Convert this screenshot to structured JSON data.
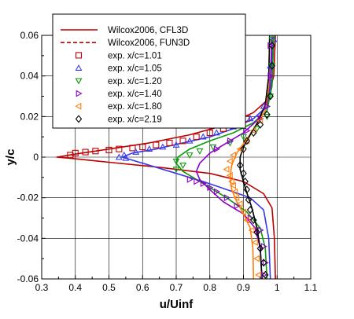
{
  "chart_data": {
    "type": "line",
    "title": "",
    "xlabel": "u/Uinf",
    "ylabel": "y/c",
    "xlim": [
      0.3,
      1.1
    ],
    "ylim": [
      -0.06,
      0.06
    ],
    "xticks": [
      0.3,
      0.4,
      0.5,
      0.6,
      0.7,
      0.8,
      0.9,
      1.0,
      1.1
    ],
    "xtick_labels": [
      "0.3",
      "0.4",
      "0.5",
      "0.6",
      "0.7",
      "0.8",
      "0.9",
      "1",
      "1.1"
    ],
    "yticks": [
      -0.06,
      -0.04,
      -0.02,
      0,
      0.02,
      0.04,
      0.06
    ],
    "ytick_labels": [
      "-0.06",
      "-0.04",
      "-0.02",
      "0",
      "0.02",
      "0.04",
      "0.06"
    ],
    "grid": true,
    "legend_position": "top-left",
    "legend": [
      {
        "label": "Wilcox2006, CFL3D",
        "style": "solid-line",
        "color": "#c00000"
      },
      {
        "label": "Wilcox2006, FUN3D",
        "style": "dashed-line",
        "color": "#c00000"
      },
      {
        "label": "exp. x/c=1.01",
        "style": "square",
        "color": "#c00000"
      },
      {
        "label": "exp. x/c=1.05",
        "style": "triangle-up",
        "color": "#3a3ae8"
      },
      {
        "label": "exp. x/c=1.20",
        "style": "triangle-down",
        "color": "#0a9a0a"
      },
      {
        "label": "exp. x/c=1.40",
        "style": "triangle-right",
        "color": "#8a00c8"
      },
      {
        "label": "exp. x/c=1.80",
        "style": "triangle-left",
        "color": "#ff7f0e"
      },
      {
        "label": "exp. x/c=2.19",
        "style": "diamond",
        "color": "#000000"
      }
    ],
    "series": [
      {
        "station": "x/c=1.01",
        "color": "#c00000",
        "cfd": [
          [
            0.995,
            -0.06
          ],
          [
            0.992,
            -0.04
          ],
          [
            0.985,
            -0.025
          ],
          [
            0.96,
            -0.018
          ],
          [
            0.9,
            -0.012
          ],
          [
            0.8,
            -0.008
          ],
          [
            0.65,
            -0.005
          ],
          [
            0.5,
            -0.0025
          ],
          [
            0.4,
            -0.0008
          ],
          [
            0.345,
            0.0
          ],
          [
            0.4,
            0.0015
          ],
          [
            0.5,
            0.004
          ],
          [
            0.62,
            0.007
          ],
          [
            0.74,
            0.011
          ],
          [
            0.85,
            0.016
          ],
          [
            0.93,
            0.022
          ],
          [
            0.97,
            0.028
          ],
          [
            0.99,
            0.04
          ],
          [
            0.995,
            0.06
          ]
        ],
        "exp": [
          [
            0.385,
            0.001
          ],
          [
            0.4,
            0.002
          ],
          [
            0.43,
            0.0025
          ],
          [
            0.46,
            0.003
          ],
          [
            0.5,
            0.0035
          ],
          [
            0.53,
            0.004
          ],
          [
            0.57,
            0.0045
          ],
          [
            0.6,
            0.005
          ],
          [
            0.64,
            0.006
          ],
          [
            0.68,
            0.007
          ],
          [
            0.72,
            0.008
          ],
          [
            0.76,
            0.01
          ],
          [
            0.8,
            0.012
          ],
          [
            0.84,
            0.014
          ],
          [
            0.88,
            0.017
          ],
          [
            0.91,
            0.019
          ]
        ]
      },
      {
        "station": "x/c=1.05",
        "color": "#3a3ae8",
        "cfd": [
          [
            0.98,
            -0.06
          ],
          [
            0.975,
            -0.04
          ],
          [
            0.96,
            -0.026
          ],
          [
            0.92,
            -0.02
          ],
          [
            0.85,
            -0.016
          ],
          [
            0.78,
            -0.012
          ],
          [
            0.7,
            -0.008
          ],
          [
            0.62,
            -0.004
          ],
          [
            0.56,
            -0.001
          ],
          [
            0.54,
            0.0
          ],
          [
            0.57,
            0.002
          ],
          [
            0.64,
            0.004
          ],
          [
            0.72,
            0.007
          ],
          [
            0.8,
            0.01
          ],
          [
            0.87,
            0.014
          ],
          [
            0.93,
            0.019
          ],
          [
            0.97,
            0.025
          ],
          [
            0.985,
            0.04
          ],
          [
            0.985,
            0.06
          ]
        ],
        "exp": [
          [
            0.53,
            0.0
          ],
          [
            0.545,
            0.001
          ],
          [
            0.55,
            -0.0005
          ],
          [
            0.58,
            0.0025
          ],
          [
            0.62,
            0.004
          ],
          [
            0.66,
            0.005
          ],
          [
            0.7,
            0.006
          ],
          [
            0.74,
            0.008
          ],
          [
            0.78,
            0.01
          ],
          [
            0.82,
            0.012
          ],
          [
            0.87,
            0.015
          ],
          [
            0.92,
            0.019
          ],
          [
            0.96,
            0.025
          ],
          [
            0.98,
            0.045
          ],
          [
            0.99,
            0.058
          ]
        ]
      },
      {
        "station": "x/c=1.20",
        "color": "#0a9a0a",
        "cfd": [
          [
            0.97,
            -0.06
          ],
          [
            0.965,
            -0.045
          ],
          [
            0.95,
            -0.035
          ],
          [
            0.91,
            -0.027
          ],
          [
            0.85,
            -0.02
          ],
          [
            0.78,
            -0.013
          ],
          [
            0.72,
            -0.007
          ],
          [
            0.7,
            -0.003
          ],
          [
            0.705,
            0.0
          ],
          [
            0.74,
            0.004
          ],
          [
            0.8,
            0.008
          ],
          [
            0.87,
            0.012
          ],
          [
            0.93,
            0.017
          ],
          [
            0.97,
            0.023
          ],
          [
            0.985,
            0.035
          ],
          [
            0.99,
            0.06
          ]
        ],
        "exp": [
          [
            0.7,
            -0.006
          ],
          [
            0.72,
            -0.004
          ],
          [
            0.7,
            -0.002
          ],
          [
            0.74,
            0.001
          ],
          [
            0.77,
            0.003
          ],
          [
            0.81,
            0.005
          ],
          [
            0.86,
            0.007
          ],
          [
            0.9,
            0.01
          ],
          [
            0.94,
            0.014
          ],
          [
            0.97,
            0.02
          ],
          [
            0.98,
            0.03
          ],
          [
            0.985,
            0.045
          ],
          [
            0.985,
            0.058
          ]
        ]
      },
      {
        "station": "x/c=1.40",
        "color": "#8a00c8",
        "cfd": [
          [
            0.955,
            -0.06
          ],
          [
            0.95,
            -0.045
          ],
          [
            0.935,
            -0.035
          ],
          [
            0.9,
            -0.028
          ],
          [
            0.84,
            -0.022
          ],
          [
            0.8,
            -0.016
          ],
          [
            0.77,
            -0.011
          ],
          [
            0.76,
            -0.007
          ],
          [
            0.77,
            -0.003
          ],
          [
            0.8,
            0.002
          ],
          [
            0.85,
            0.007
          ],
          [
            0.9,
            0.012
          ],
          [
            0.94,
            0.018
          ],
          [
            0.97,
            0.026
          ],
          [
            0.98,
            0.04
          ],
          [
            0.985,
            0.06
          ]
        ],
        "exp": [
          [
            0.74,
            -0.011
          ],
          [
            0.76,
            -0.012
          ],
          [
            0.78,
            -0.013
          ],
          [
            0.8,
            -0.015
          ],
          [
            0.82,
            -0.017
          ],
          [
            0.85,
            -0.02
          ],
          [
            0.88,
            -0.024
          ],
          [
            0.92,
            -0.03
          ],
          [
            0.95,
            -0.036
          ],
          [
            0.96,
            -0.044
          ],
          [
            0.965,
            -0.052
          ],
          [
            0.96,
            -0.058
          ],
          [
            0.82,
            0.004
          ],
          [
            0.86,
            0.008
          ],
          [
            0.91,
            0.013
          ],
          [
            0.95,
            0.019
          ],
          [
            0.97,
            0.025
          ],
          [
            0.98,
            0.04
          ],
          [
            0.98,
            0.055
          ]
        ]
      },
      {
        "station": "x/c=1.80",
        "color": "#ff7f0e",
        "cfd": [
          [
            0.93,
            -0.06
          ],
          [
            0.928,
            -0.045
          ],
          [
            0.92,
            -0.035
          ],
          [
            0.9,
            -0.028
          ],
          [
            0.88,
            -0.022
          ],
          [
            0.865,
            -0.016
          ],
          [
            0.86,
            -0.01
          ],
          [
            0.865,
            -0.004
          ],
          [
            0.88,
            0.002
          ],
          [
            0.91,
            0.009
          ],
          [
            0.94,
            0.016
          ],
          [
            0.965,
            0.023
          ],
          [
            0.975,
            0.035
          ],
          [
            0.978,
            0.06
          ]
        ],
        "exp": [
          [
            0.85,
            -0.006
          ],
          [
            0.86,
            -0.009
          ],
          [
            0.865,
            -0.012
          ],
          [
            0.87,
            -0.014
          ],
          [
            0.875,
            -0.017
          ],
          [
            0.88,
            -0.02
          ],
          [
            0.89,
            -0.023
          ],
          [
            0.9,
            -0.027
          ],
          [
            0.91,
            -0.031
          ],
          [
            0.925,
            -0.036
          ],
          [
            0.935,
            -0.042
          ],
          [
            0.94,
            -0.05
          ],
          [
            0.945,
            -0.058
          ],
          [
            0.86,
            -0.002
          ],
          [
            0.87,
            0.001
          ],
          [
            0.89,
            0.004
          ],
          [
            0.91,
            0.008
          ],
          [
            0.93,
            0.013
          ],
          [
            0.95,
            0.018
          ]
        ]
      },
      {
        "station": "x/c=2.19",
        "color": "#000000",
        "cfd": [
          [
            0.955,
            -0.06
          ],
          [
            0.95,
            -0.045
          ],
          [
            0.94,
            -0.035
          ],
          [
            0.925,
            -0.025
          ],
          [
            0.905,
            -0.015
          ],
          [
            0.89,
            -0.006
          ],
          [
            0.89,
            0.0
          ],
          [
            0.9,
            0.005
          ],
          [
            0.92,
            0.011
          ],
          [
            0.945,
            0.018
          ],
          [
            0.965,
            0.026
          ],
          [
            0.975,
            0.04
          ],
          [
            0.978,
            0.06
          ]
        ],
        "exp": [
          [
            0.89,
            -0.004
          ],
          [
            0.9,
            -0.008
          ],
          [
            0.905,
            -0.012
          ],
          [
            0.91,
            -0.016
          ],
          [
            0.915,
            -0.021
          ],
          [
            0.92,
            -0.026
          ],
          [
            0.93,
            -0.031
          ],
          [
            0.94,
            -0.037
          ],
          [
            0.95,
            -0.045
          ],
          [
            0.96,
            -0.052
          ],
          [
            0.965,
            -0.058
          ],
          [
            0.9,
            0.004
          ],
          [
            0.91,
            0.008
          ],
          [
            0.93,
            0.012
          ],
          [
            0.95,
            0.016
          ],
          [
            0.97,
            0.021
          ],
          [
            0.98,
            0.03
          ],
          [
            0.985,
            0.045
          ],
          [
            0.985,
            0.055
          ]
        ]
      }
    ]
  }
}
